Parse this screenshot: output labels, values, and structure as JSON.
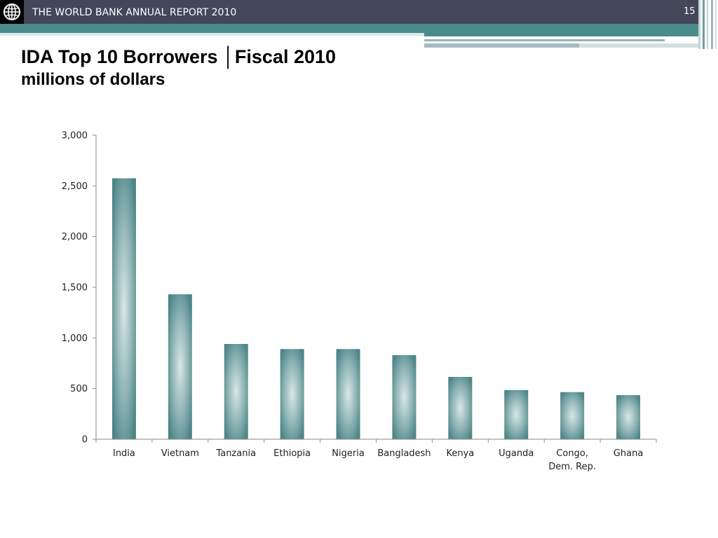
{
  "header": {
    "title": "THE WORLD BANK ANNUAL REPORT 2010",
    "page_number": "15",
    "logo_icon": "world-bank-globe-icon"
  },
  "colors": {
    "header_bg": "#44465a",
    "band_teal": "#4b8b8c",
    "bar_edge": "#4d8588",
    "bar_center": "#d9e7e7",
    "axis": "#8a8a8a"
  },
  "chart_data": {
    "type": "bar",
    "title": "IDA Top 10 Borrowers │Fiscal 2010",
    "subtitle": "millions of dollars",
    "categories": [
      "India",
      "Vietnam",
      "Tanzania",
      "Ethiopia",
      "Nigeria",
      "Bangladesh",
      "Kenya",
      "Uganda",
      "Congo, Dem. Rep.",
      "Ghana"
    ],
    "values": [
      2575,
      1430,
      940,
      890,
      890,
      830,
      615,
      485,
      465,
      435
    ],
    "ylim": [
      0,
      3000
    ],
    "yticks": [
      0,
      500,
      1000,
      1500,
      2000,
      2500,
      3000
    ],
    "ytick_labels": [
      "0",
      "500",
      "1,000",
      "1,500",
      "2,000",
      "2,500",
      "3,000"
    ],
    "grid": false,
    "legend": "none"
  }
}
